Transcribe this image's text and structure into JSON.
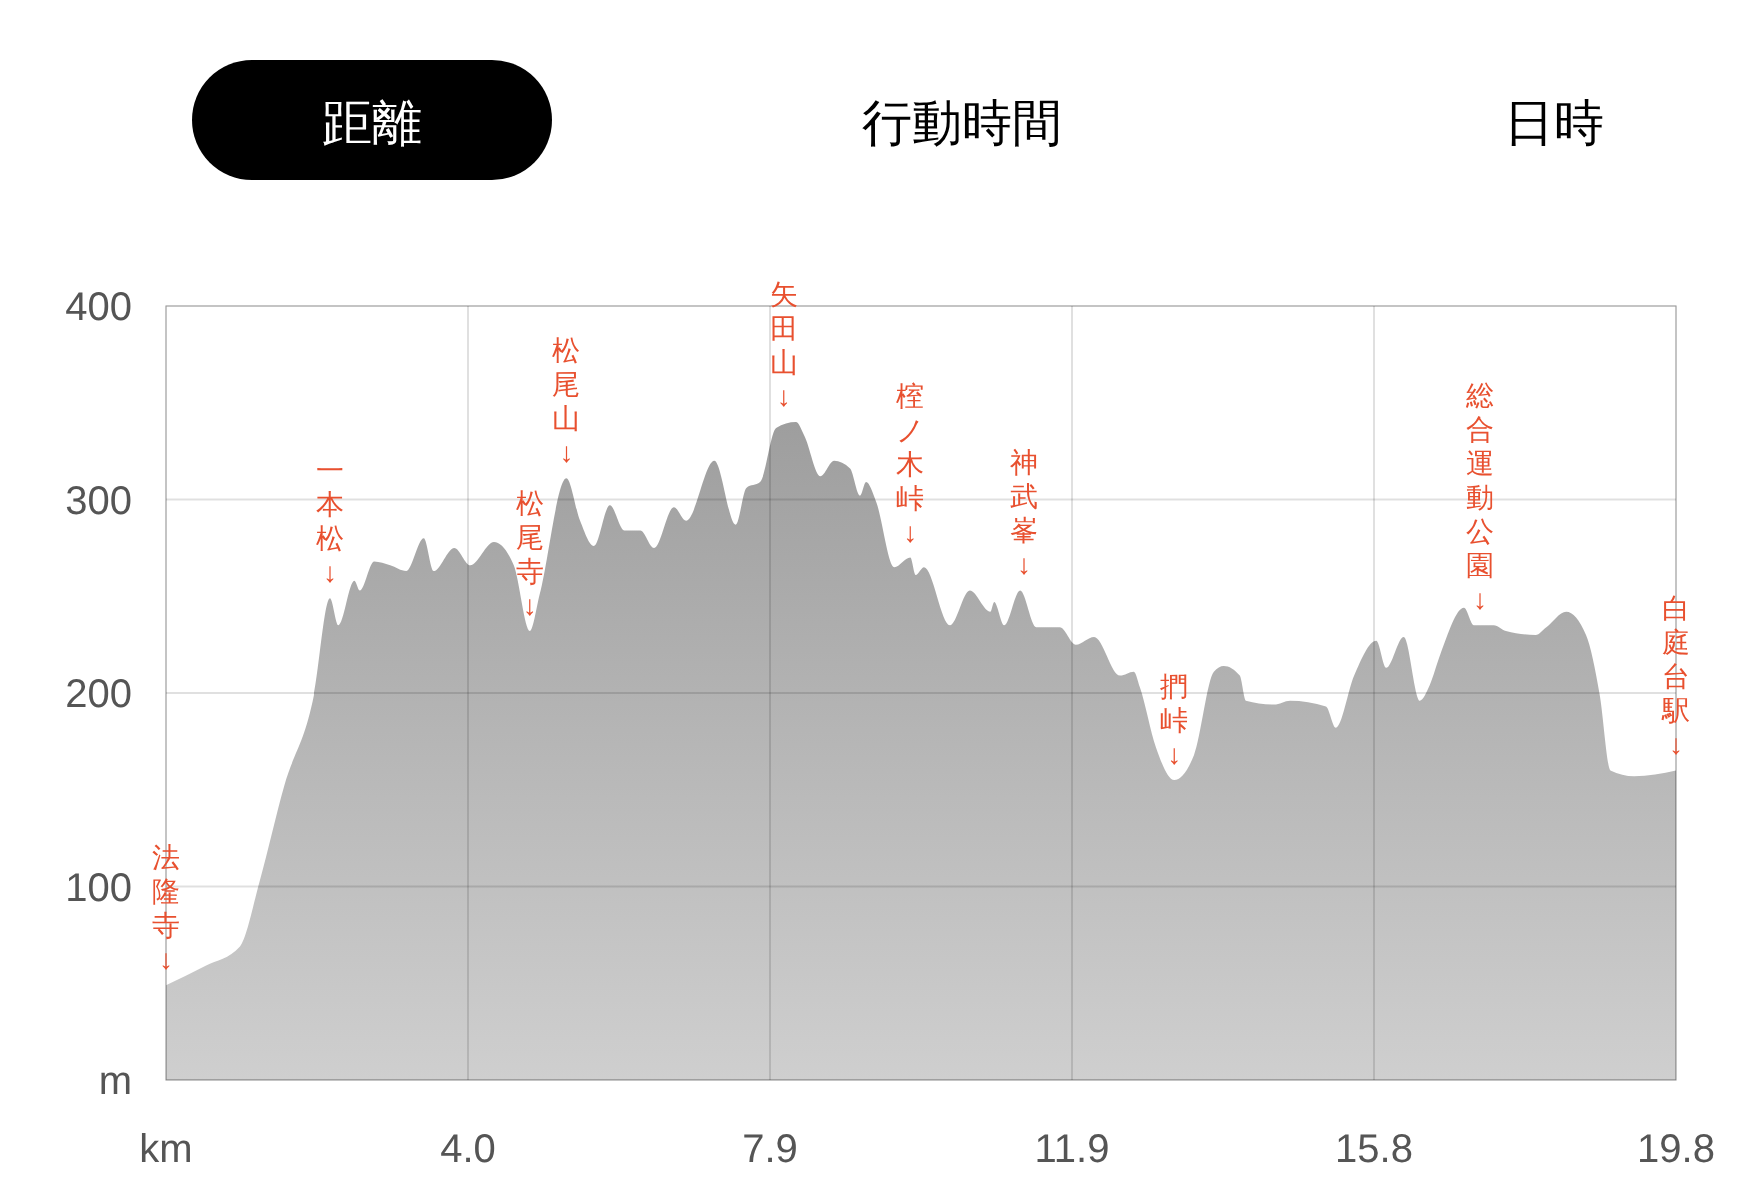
{
  "chart_data": {
    "type": "area",
    "color": "#b0b0b0",
    "grid": true,
    "x": [
      0,
      0.52,
      0.97,
      1.23,
      1.55,
      1.94,
      2.15,
      2.26,
      2.47,
      2.54,
      2.73,
      2.94,
      3.15,
      3.38,
      3.51,
      3.78,
      3.99,
      4.3,
      4.56,
      4.77,
      4.9,
      5.25,
      5.43,
      5.61,
      5.82,
      6.01,
      6.22,
      6.4,
      6.66,
      6.82,
      7.19,
      7.47,
      7.61,
      7.79,
      8.0,
      8.26,
      8.37,
      8.58,
      8.76,
      8.97,
      9.1,
      9.18,
      9.31,
      9.55,
      9.76,
      9.83,
      9.94,
      10.28,
      10.54,
      10.81,
      10.86,
      10.99,
      11.2,
      11.41,
      11.72,
      11.93,
      12.17,
      12.51,
      12.69,
      12.77,
      12.98,
      13.22,
      13.48,
      13.74,
      13.87,
      14.08,
      14.16,
      14.53,
      14.74,
      15.21,
      15.34,
      15.58,
      15.87,
      16.0,
      16.23,
      16.44,
      16.57,
      16.71,
      17.02,
      17.15,
      17.41,
      17.57,
      17.96,
      18.1,
      18.36,
      18.62,
      18.8,
      18.94,
      19.25,
      19.8
    ],
    "values": [
      49,
      59,
      69,
      103,
      152,
      199,
      249,
      235,
      258,
      253,
      268,
      266,
      263,
      280,
      263,
      275,
      266,
      278,
      266,
      232,
      251,
      311,
      289,
      276,
      297,
      284,
      284,
      275,
      296,
      289,
      320,
      287,
      306,
      309,
      337,
      340,
      333,
      312,
      320,
      316,
      302,
      309,
      299,
      265,
      270,
      261,
      265,
      235,
      253,
      242,
      247,
      235,
      253,
      234,
      234,
      225,
      229,
      209,
      211,
      203,
      172,
      155,
      168,
      211,
      214,
      209,
      196,
      194,
      196,
      193,
      182,
      209,
      227,
      213,
      229,
      196,
      204,
      220,
      244,
      235,
      235,
      232,
      230,
      234,
      242,
      230,
      199,
      160,
      157,
      160
    ],
    "xlim": [
      0,
      19.8
    ],
    "xticks": [
      {
        "value": 0,
        "label": "km"
      },
      {
        "value": 3.96,
        "label": "4.0"
      },
      {
        "value": 7.92,
        "label": "7.9"
      },
      {
        "value": 11.88,
        "label": "11.9"
      },
      {
        "value": 15.84,
        "label": "15.8"
      },
      19.8
    ],
    "ylim": [
      0,
      400
    ],
    "yticks": [
      {
        "value": 0,
        "label": "m"
      },
      100,
      200,
      300,
      400
    ],
    "annotations": [
      "距離",
      "行動時間",
      "日時",
      {
        "text": "法隆寺↓",
        "x": 0,
        "y": 49
      },
      {
        "text": "一本松↓",
        "x": 2.15,
        "y": 249
      },
      {
        "text": "松尾寺↓",
        "x": 4.77,
        "y": 232
      },
      {
        "text": "松尾山↓",
        "x": 5.25,
        "y": 311
      },
      {
        "text": "矢田山↓",
        "x": 8.1,
        "y": 340
      },
      {
        "text": "榁ノ木峠↓",
        "x": 9.76,
        "y": 270
      },
      {
        "text": "神武峯↓",
        "x": 11.25,
        "y": 253
      },
      {
        "text": "捫峠↓",
        "x": 13.22,
        "y": 155
      },
      {
        "text": "総合運動公園↓",
        "x": 17.23,
        "y": 235
      },
      {
        "text": "白庭台駅↓",
        "x": 19.8,
        "y": 160
      }
    ]
  }
}
